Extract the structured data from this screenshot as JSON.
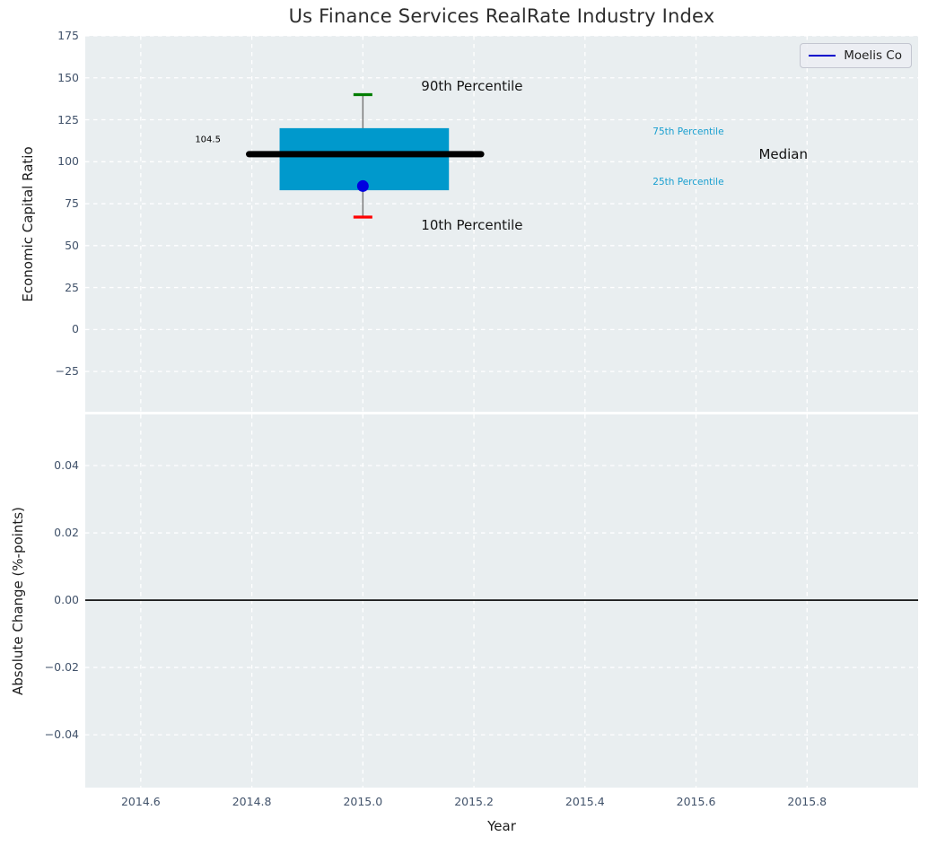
{
  "title": "Us Finance Services RealRate Industry Index",
  "legend": {
    "label": "Moelis Co",
    "line_color": "#0000cc"
  },
  "style": {
    "panel_bg": "#e9eef0",
    "grid_color": "#ffffff",
    "tick_color": "#42536b",
    "title_color": "#2d2d2d",
    "text_color": "#1c1c1c"
  },
  "chart_data": {
    "type": "boxplot",
    "title": "Us Finance Services RealRate Industry Index",
    "x_axis": {
      "label": "Year",
      "xlim": [
        2014.5,
        2016.0
      ],
      "xticks": [
        2014.6,
        2014.8,
        2015.0,
        2015.2,
        2015.4,
        2015.6,
        2015.8
      ],
      "xtick_labels": [
        "2014.6",
        "2014.8",
        "2015.0",
        "2015.2",
        "2015.4",
        "2015.6",
        "2015.8"
      ]
    },
    "top_panel": {
      "ylabel": "Economic Capital Ratio",
      "ylim": [
        -49,
        175
      ],
      "yticks": [
        175,
        150,
        125,
        100,
        75,
        50,
        25,
        0,
        -25
      ],
      "ytick_labels": [
        "175",
        "150",
        "125",
        "100",
        "75",
        "50",
        "25",
        "0",
        "−25"
      ],
      "grid": true,
      "box": {
        "x_center": 2015.0,
        "x_left": 2014.85,
        "x_right": 2015.155,
        "p10": 67,
        "p25": 83,
        "median": 104.5,
        "p75": 120,
        "p90": 140,
        "cap_halfwidth": 0.017,
        "median_line_x": [
          2014.795,
          2015.213
        ],
        "colors": {
          "box": "#0099cc",
          "median": "#000000",
          "whisker": "#7a7a7a",
          "cap_top": "#007d00",
          "cap_bottom": "#ff0000"
        }
      },
      "company_point": {
        "label": "Moelis Co",
        "x": 2015.0,
        "y": 85.5,
        "color": "#0000e0",
        "radius": 6.5
      },
      "annotations": [
        {
          "text": "90th Percentile",
          "x": 2015.105,
          "y": 145.3,
          "anchor": "left",
          "color": "#161616",
          "size": 15
        },
        {
          "text": "10th Percentile",
          "x": 2015.105,
          "y": 62.0,
          "anchor": "left",
          "color": "#161616",
          "size": 15
        },
        {
          "text": "104.5",
          "x": 2014.744,
          "y": 113.0,
          "anchor": "right",
          "color": "#000000",
          "size": 10
        },
        {
          "text": "75th Percentile",
          "x": 2015.522,
          "y": 117.3,
          "anchor": "left",
          "color": "#189fd0",
          "size": 10.5
        },
        {
          "text": "25th Percentile",
          "x": 2015.522,
          "y": 87.3,
          "anchor": "left",
          "color": "#189fd0",
          "size": 10.5
        },
        {
          "text": "Median",
          "x": 2015.713,
          "y": 104.5,
          "anchor": "left",
          "color": "#111111",
          "size": 15
        }
      ]
    },
    "bottom_panel": {
      "ylabel": "Absolute Change (%-points)",
      "ylim": [
        -0.0557,
        0.0552
      ],
      "yticks": [
        0.04,
        0.02,
        0.0,
        -0.02,
        -0.04
      ],
      "ytick_labels": [
        "0.04",
        "0.02",
        "0.00",
        "−0.02",
        "−0.04"
      ],
      "grid": true,
      "zero_line": {
        "y": 0.0,
        "color": "#000000",
        "width": 1.6
      }
    }
  }
}
